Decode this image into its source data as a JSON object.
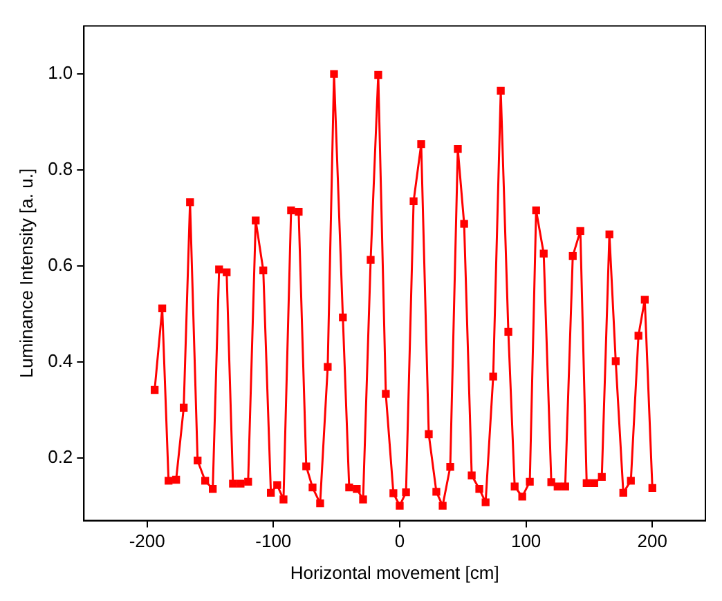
{
  "chart_data": {
    "type": "line",
    "xlabel": "Horizontal movement [cm]",
    "ylabel": "Luminance Intensity [a. u.]",
    "x": [
      -194,
      -188,
      -183,
      -177,
      -171,
      -166,
      -160,
      -154,
      -148,
      -143,
      -137,
      -132,
      -126,
      -120,
      -114,
      -108,
      -102,
      -97,
      -92,
      -86,
      -80,
      -74,
      -69,
      -63,
      -57,
      -52,
      -45,
      -40,
      -34,
      -29,
      -23,
      -17,
      -11,
      -5,
      0,
      5,
      11,
      17,
      23,
      29,
      34,
      40,
      46,
      51,
      57,
      63,
      68,
      74,
      80,
      86,
      91,
      97,
      103,
      108,
      114,
      120,
      125,
      131,
      137,
      143,
      148,
      154,
      160,
      166,
      171,
      177,
      183,
      189,
      194,
      200
    ],
    "series": [
      {
        "color": "#ff0000",
        "values": [
          0.342,
          0.512,
          0.153,
          0.155,
          0.305,
          0.733,
          0.195,
          0.153,
          0.136,
          0.593,
          0.587,
          0.147,
          0.147,
          0.151,
          0.695,
          0.591,
          0.128,
          0.144,
          0.114,
          0.716,
          0.713,
          0.183,
          0.139,
          0.106,
          0.39,
          1.0,
          0.493,
          0.139,
          0.136,
          0.114,
          0.613,
          0.998,
          0.334,
          0.127,
          0.101,
          0.129,
          0.735,
          0.854,
          0.25,
          0.13,
          0.101,
          0.182,
          0.844,
          0.688,
          0.164,
          0.136,
          0.108,
          0.37,
          0.965,
          0.463,
          0.141,
          0.12,
          0.151,
          0.716,
          0.626,
          0.15,
          0.141,
          0.141,
          0.621,
          0.673,
          0.148,
          0.148,
          0.161,
          0.666,
          0.402,
          0.128,
          0.153,
          0.455,
          0.53,
          0.138
        ]
      }
    ],
    "xlim": [
      -250,
      242
    ],
    "xticks": [
      -200,
      -100,
      0,
      100,
      200
    ],
    "ylim": [
      0.07,
      1.1
    ],
    "yticks": [
      {
        "value": 0.2,
        "label": "0.2"
      },
      {
        "value": 0.4,
        "label": "0.4"
      },
      {
        "value": 0.6,
        "label": "0.6"
      },
      {
        "value": 0.8,
        "label": "0.8"
      },
      {
        "value": 1.0,
        "label": "1.0"
      }
    ],
    "grid": false,
    "legend": false,
    "marker": "square",
    "line_style": "solid"
  }
}
